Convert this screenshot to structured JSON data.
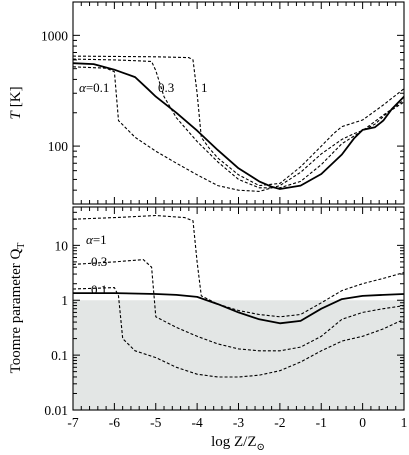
{
  "chart_data": [
    {
      "type": "line",
      "panel": "top",
      "ylabel_main": "T",
      "ylabel_unit": "[K]",
      "yscale": "log",
      "ylim": [
        30,
        2000
      ],
      "xlim": [
        -7,
        1
      ],
      "yticks": [
        100,
        1000
      ],
      "ytick_labels": [
        "100",
        "1000"
      ],
      "series": [
        {
          "name": "α=0.1",
          "style": "solid",
          "x": [
            -7,
            -6.5,
            -6,
            -5.8,
            -5.5,
            -5.2,
            -5,
            -4.5,
            -4,
            -3.5,
            -3,
            -2.5,
            -2.2,
            -2,
            -1.5,
            -1,
            -0.5,
            -0.2,
            0,
            0.3,
            0.5,
            0.7,
            1
          ],
          "y": [
            560,
            550,
            490,
            460,
            420,
            330,
            280,
            200,
            138,
            92,
            63,
            48,
            43,
            41,
            44,
            56,
            84,
            118,
            140,
            148,
            170,
            215,
            280
          ]
        },
        {
          "name": "0.3",
          "style": "dashed",
          "x": [
            -7,
            -6,
            -5.5,
            -5.1,
            -5,
            -4.8,
            -4.5,
            -4,
            -3.5,
            -3,
            -2.5,
            -2,
            -1.5,
            -1,
            -0.5,
            0,
            0.3,
            0.6,
            1
          ],
          "y": [
            610,
            600,
            590,
            580,
            480,
            280,
            180,
            110,
            72,
            50,
            42,
            42,
            48,
            68,
            105,
            138,
            158,
            200,
            250
          ]
        },
        {
          "name": "1",
          "style": "dashed",
          "x": [
            -7,
            -5,
            -4.2,
            -4.1,
            -4,
            -3.9,
            -3.7,
            -3.5,
            -3,
            -2.5,
            -2,
            -1.5,
            -1,
            -0.7,
            -0.5,
            0,
            0.5,
            1
          ],
          "y": [
            650,
            640,
            630,
            600,
            300,
            120,
            95,
            78,
            55,
            44,
            46,
            65,
            100,
            130,
            150,
            172,
            235,
            330
          ]
        },
        {
          "name": "",
          "style": "dashed",
          "x": [
            -7,
            -6.2,
            -6,
            -5.9,
            -5.5,
            -5,
            -4.5,
            -4,
            -3.5,
            -3,
            -2.5,
            -2,
            -1.5,
            -1,
            -0.5,
            -0.2,
            0,
            0.5,
            1
          ],
          "y": [
            520,
            505,
            470,
            170,
            120,
            90,
            70,
            55,
            44,
            40,
            39,
            44,
            58,
            85,
            115,
            130,
            138,
            190,
            260
          ]
        }
      ],
      "annotations": [
        "α=0.1",
        "0.3",
        "1"
      ]
    },
    {
      "type": "line",
      "panel": "bottom",
      "ylabel_main": "Toomre parameter Q",
      "ylabel_sub": "T",
      "xlabel_main": "log Z/Z",
      "xlabel_sub": "⊙",
      "yscale": "log",
      "ylim": [
        0.01,
        50
      ],
      "xlim": [
        -7,
        1
      ],
      "xticks": [
        -7,
        -6,
        -5,
        -4,
        -3,
        -2,
        -1,
        0,
        1
      ],
      "xtick_labels": [
        "-7",
        "-6",
        "-5",
        "-4",
        "-3",
        "-2",
        "-1",
        "0",
        "1"
      ],
      "yticks": [
        0.01,
        0.1,
        1,
        10
      ],
      "ytick_labels": [
        "0.01",
        "0.1",
        "1",
        "10"
      ],
      "shaded_below": 1,
      "shade_color": "#e3e6e5",
      "series": [
        {
          "name": "",
          "style": "solid",
          "x": [
            -7,
            -6,
            -5,
            -4.5,
            -4,
            -3.5,
            -3,
            -2.5,
            -2,
            -1.5,
            -1,
            -0.5,
            0,
            0.5,
            1
          ],
          "y": [
            1.35,
            1.35,
            1.3,
            1.25,
            1.15,
            0.85,
            0.6,
            0.45,
            0.38,
            0.42,
            0.7,
            1.05,
            1.2,
            1.25,
            1.3
          ]
        },
        {
          "name": "α=1",
          "style": "dashed",
          "x": [
            -7,
            -6,
            -5,
            -4.3,
            -4.1,
            -4,
            -3.9,
            -3.5,
            -3,
            -2.5,
            -2,
            -1.5,
            -1,
            -0.5,
            0,
            0.5,
            1
          ],
          "y": [
            30,
            32,
            35,
            32,
            28,
            5,
            1.2,
            0.85,
            0.65,
            0.55,
            0.5,
            0.55,
            0.9,
            1.5,
            2.0,
            2.5,
            3.2
          ]
        },
        {
          "name": "0.3",
          "style": "dashed",
          "x": [
            -7,
            -6,
            -5.3,
            -5.1,
            -5,
            -4.5,
            -4,
            -3.5,
            -3,
            -2.5,
            -2,
            -1.5,
            -1,
            -0.5,
            0,
            0.5,
            1
          ],
          "y": [
            4.5,
            5,
            5.5,
            4,
            0.5,
            0.32,
            0.22,
            0.16,
            0.13,
            0.12,
            0.12,
            0.14,
            0.22,
            0.45,
            0.6,
            0.7,
            0.8
          ]
        },
        {
          "name": "0.1",
          "style": "dashed",
          "x": [
            -7,
            -6,
            -5.9,
            -5.8,
            -5.5,
            -5,
            -4.5,
            -4,
            -3.5,
            -3,
            -2.5,
            -2,
            -1.5,
            -1,
            -0.5,
            0,
            0.5,
            1
          ],
          "y": [
            1.6,
            1.7,
            1.2,
            0.2,
            0.12,
            0.09,
            0.06,
            0.045,
            0.04,
            0.04,
            0.043,
            0.052,
            0.075,
            0.12,
            0.18,
            0.22,
            0.3,
            0.45
          ]
        }
      ],
      "annotations": [
        "α=1",
        "0.3",
        "0.1"
      ]
    }
  ]
}
